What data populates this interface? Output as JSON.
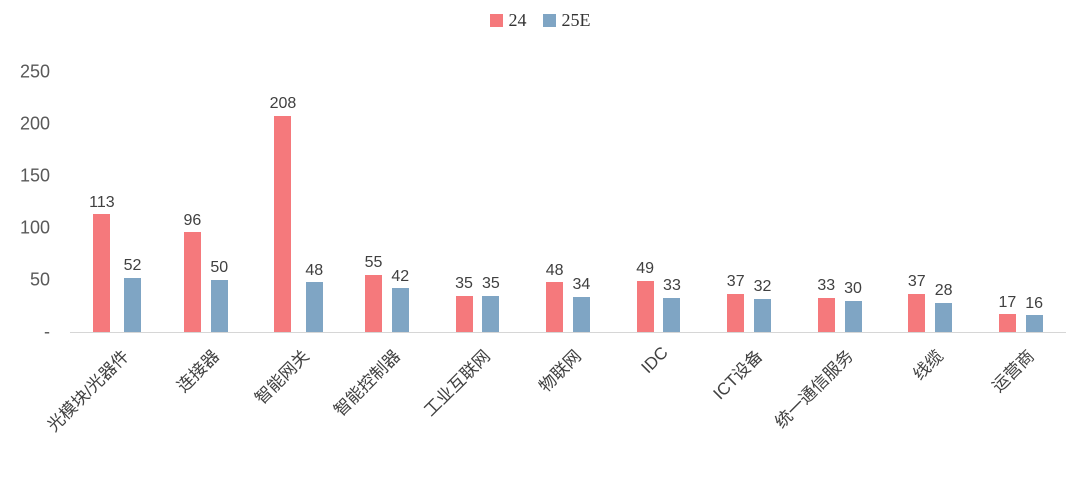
{
  "chart_data": {
    "type": "bar",
    "title": "",
    "categories": [
      "光模块/光器件",
      "连接器",
      "智能网关",
      "智能控制器",
      "工业互联网",
      "物联网",
      "IDC",
      "ICT设备",
      "统一通信服务",
      "线缆",
      "运营商"
    ],
    "series": [
      {
        "name": "24",
        "color": "#F5797C",
        "values": [
          113,
          96,
          208,
          55,
          35,
          48,
          49,
          37,
          33,
          37,
          17
        ]
      },
      {
        "name": "25E",
        "color": "#7FA5C4",
        "values": [
          52,
          50,
          48,
          42,
          35,
          34,
          33,
          32,
          30,
          28,
          16
        ]
      }
    ],
    "ylim": [
      0,
      250
    ],
    "yticks": [
      {
        "value": 250,
        "label": "250"
      },
      {
        "value": 200,
        "label": "200"
      },
      {
        "value": 150,
        "label": "150"
      },
      {
        "value": 100,
        "label": "100"
      },
      {
        "value": 50,
        "label": "50"
      },
      {
        "value": 0,
        "label": "-"
      }
    ],
    "legend_position": "top",
    "grid": false
  }
}
